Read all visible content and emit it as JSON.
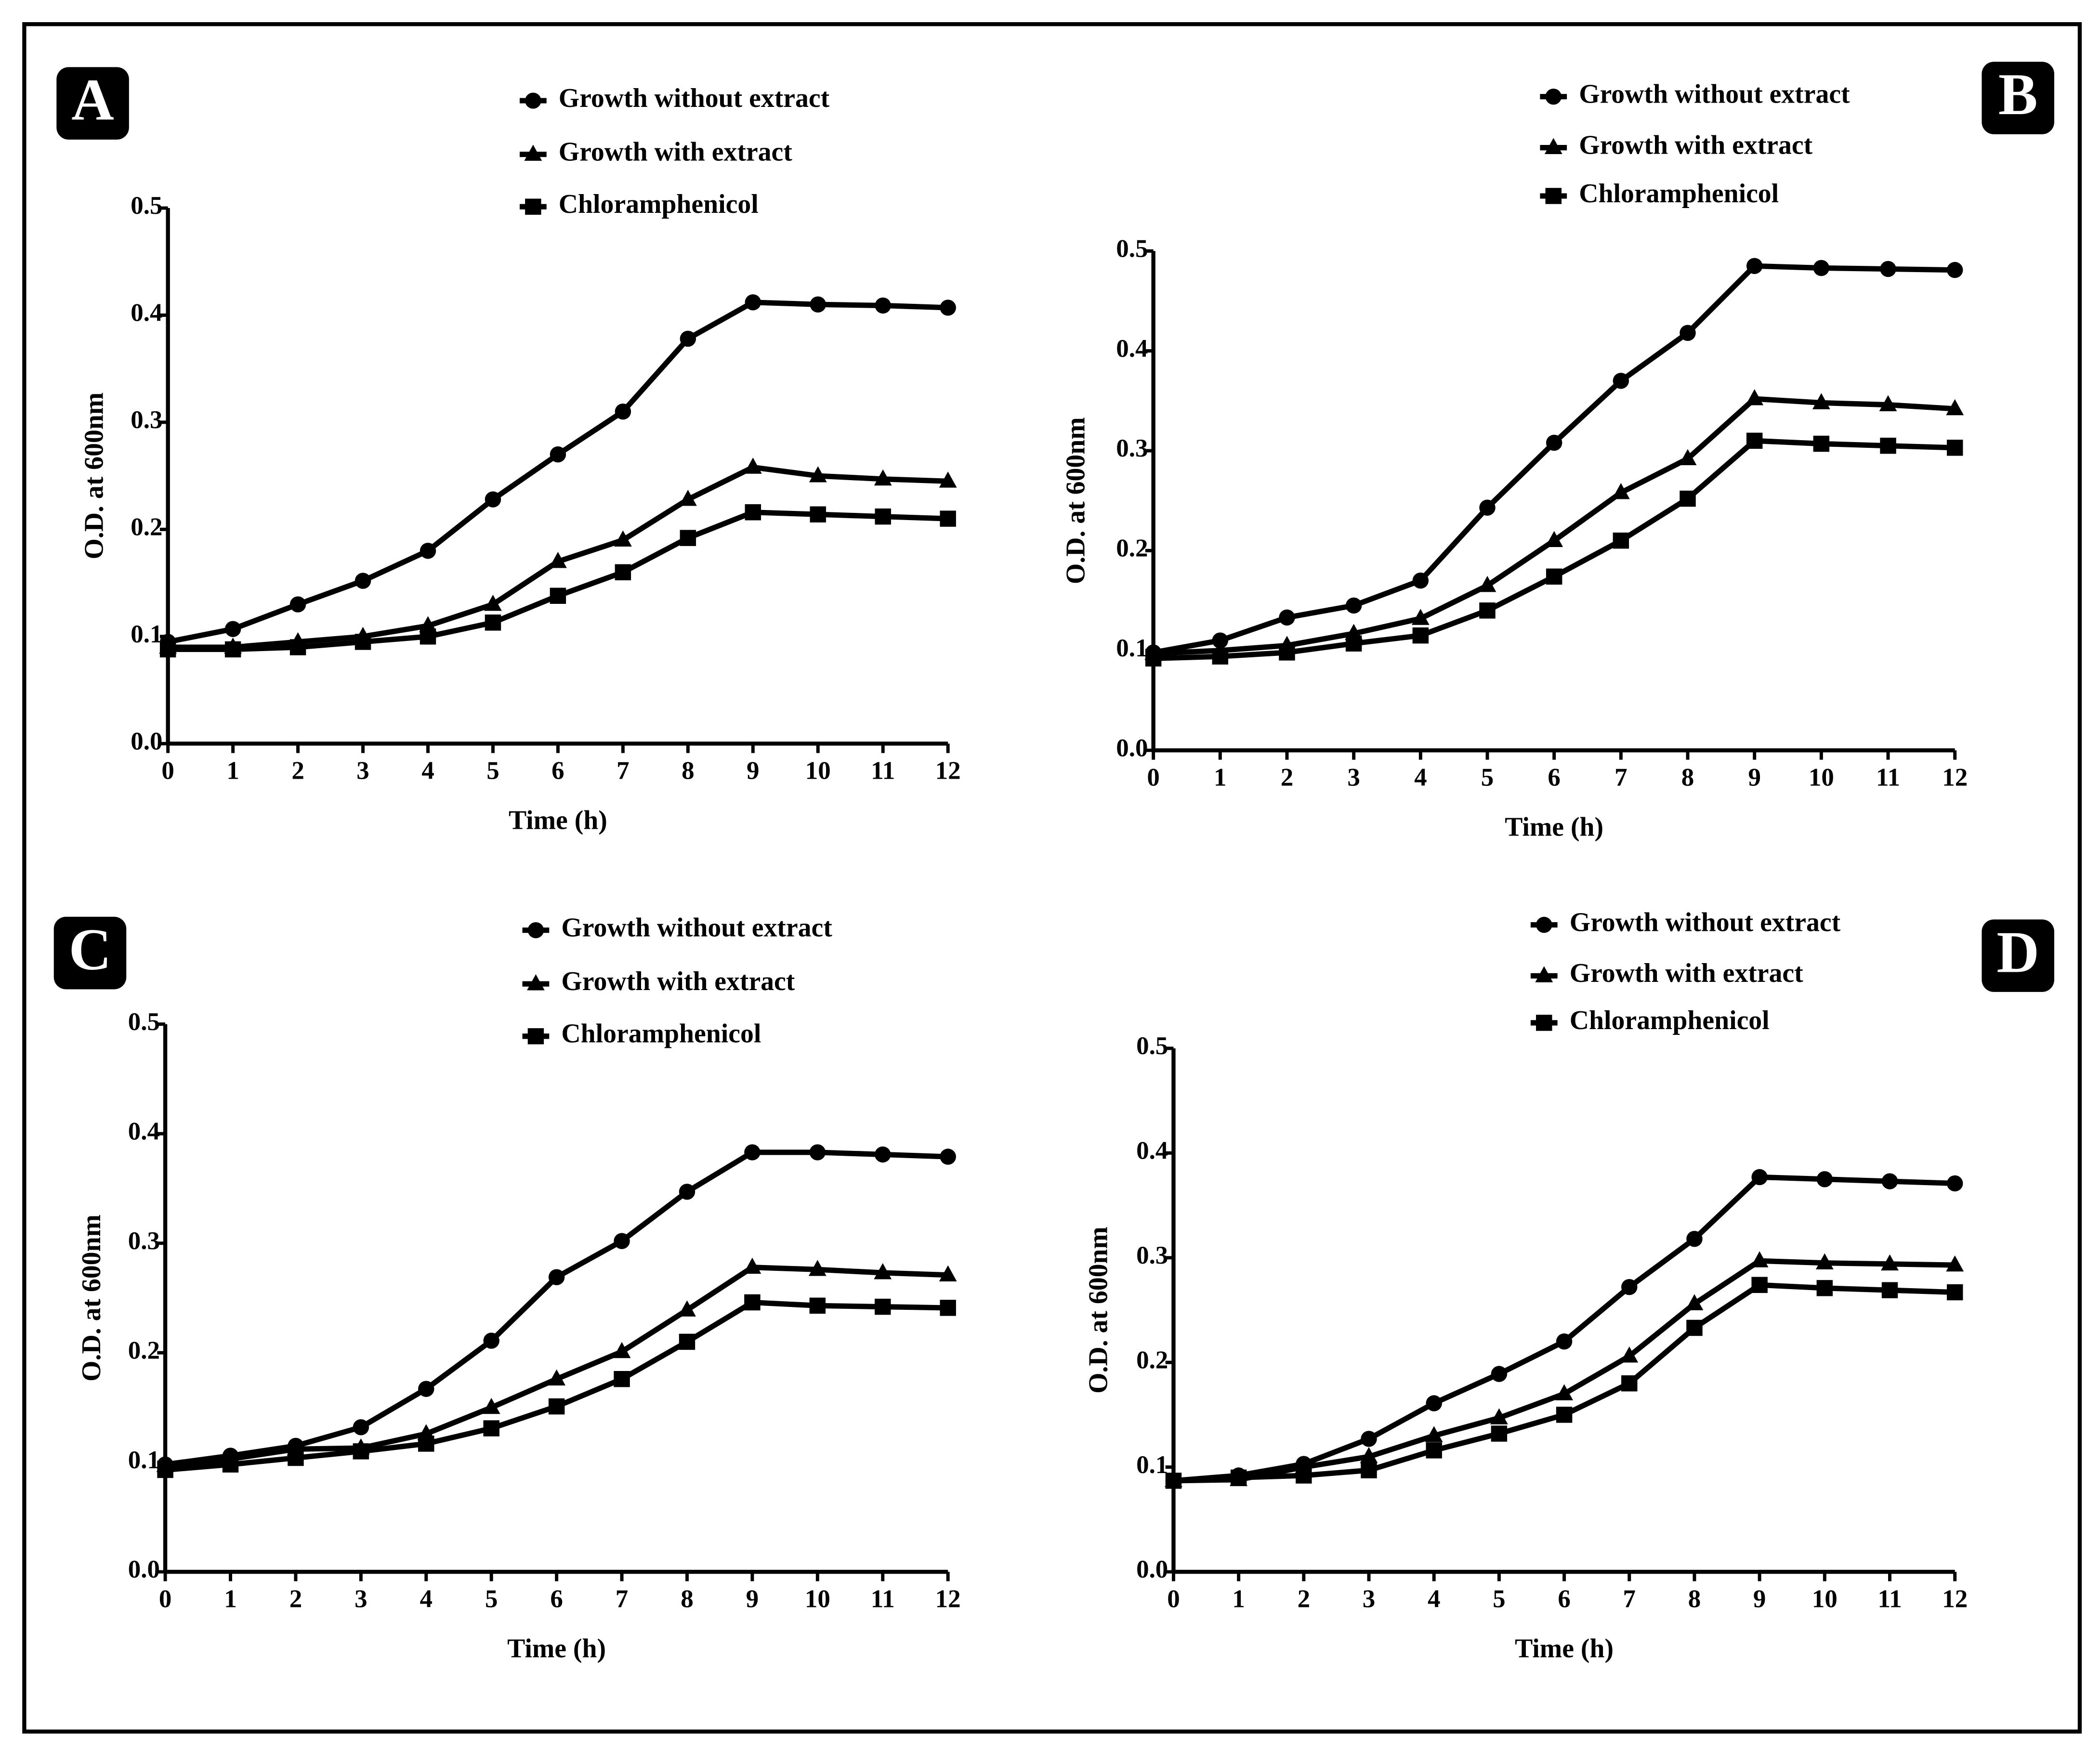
{
  "chart_data": [
    {
      "type": "line",
      "label": "A",
      "xlabel": "Time (h)",
      "ylabel": "O.D. at 600nm",
      "x": [
        0,
        1,
        2,
        3,
        4,
        5,
        6,
        7,
        8,
        9,
        10,
        11,
        12
      ],
      "xlim": [
        0,
        12
      ],
      "xticks": [
        0,
        1,
        2,
        3,
        4,
        5,
        6,
        7,
        8,
        9,
        10,
        11,
        12
      ],
      "ylim": [
        0,
        0.5
      ],
      "yticks": [
        {
          "value": 0,
          "label": "0.0"
        },
        0.1,
        0.2,
        0.3,
        0.4,
        0.5
      ],
      "series": [
        {
          "name": "Growth without extract",
          "color": "#000000",
          "marker": "circle",
          "values": [
            0.095,
            0.107,
            0.13,
            0.152,
            0.18,
            0.228,
            0.27,
            0.31,
            0.378,
            0.412,
            0.41,
            0.409,
            0.407
          ]
        },
        {
          "name": "Growth with extract",
          "color": "#000000",
          "marker": "triangle",
          "values": [
            0.09,
            0.09,
            0.095,
            0.1,
            0.11,
            0.13,
            0.17,
            0.19,
            0.228,
            0.258,
            0.25,
            0.247,
            0.245
          ]
        },
        {
          "name": "Chloramphenicol",
          "color": "#000000",
          "marker": "square",
          "values": [
            0.088,
            0.088,
            0.09,
            0.095,
            0.1,
            0.113,
            0.138,
            0.16,
            0.192,
            0.216,
            0.214,
            0.212,
            0.21
          ]
        }
      ]
    },
    {
      "type": "line",
      "label": "B",
      "xlabel": "Time (h)",
      "ylabel": "O.D. at 600nm",
      "x": [
        0,
        1,
        2,
        3,
        4,
        5,
        6,
        7,
        8,
        9,
        10,
        11,
        12
      ],
      "xlim": [
        0,
        12
      ],
      "xticks": [
        0,
        1,
        2,
        3,
        4,
        5,
        6,
        7,
        8,
        9,
        10,
        11,
        12
      ],
      "ylim": [
        0,
        0.5
      ],
      "yticks": [
        {
          "value": 0,
          "label": "0.0"
        },
        0.1,
        0.2,
        0.3,
        0.4,
        0.5
      ],
      "series": [
        {
          "name": "Growth without extract",
          "color": "#000000",
          "marker": "circle",
          "values": [
            0.098,
            0.11,
            0.133,
            0.145,
            0.17,
            0.243,
            0.308,
            0.37,
            0.418,
            0.485,
            0.483,
            0.482,
            0.481
          ]
        },
        {
          "name": "Growth with extract",
          "color": "#000000",
          "marker": "triangle",
          "values": [
            0.097,
            0.1,
            0.105,
            0.117,
            0.132,
            0.165,
            0.21,
            0.258,
            0.292,
            0.352,
            0.348,
            0.346,
            0.342
          ]
        },
        {
          "name": "Chloramphenicol",
          "color": "#000000",
          "marker": "square",
          "values": [
            0.092,
            0.094,
            0.098,
            0.107,
            0.115,
            0.14,
            0.174,
            0.21,
            0.252,
            0.31,
            0.307,
            0.305,
            0.303
          ]
        }
      ]
    },
    {
      "type": "line",
      "label": "C",
      "xlabel": "Time (h)",
      "ylabel": "O.D. at 600nm",
      "x": [
        0,
        1,
        2,
        3,
        4,
        5,
        6,
        7,
        8,
        9,
        10,
        11,
        12
      ],
      "xlim": [
        0,
        12
      ],
      "xticks": [
        0,
        1,
        2,
        3,
        4,
        5,
        6,
        7,
        8,
        9,
        10,
        11,
        12
      ],
      "ylim": [
        0,
        0.5
      ],
      "yticks": [
        {
          "value": 0,
          "label": "0.0"
        },
        0.1,
        0.2,
        0.3,
        0.4,
        0.5
      ],
      "series": [
        {
          "name": "Growth without extract",
          "color": "#000000",
          "marker": "circle",
          "values": [
            0.098,
            0.106,
            0.115,
            0.132,
            0.167,
            0.211,
            0.269,
            0.302,
            0.347,
            0.383,
            0.383,
            0.381,
            0.379
          ]
        },
        {
          "name": "Growth with extract",
          "color": "#000000",
          "marker": "triangle",
          "values": [
            0.097,
            0.103,
            0.112,
            0.113,
            0.126,
            0.15,
            0.176,
            0.201,
            0.239,
            0.278,
            0.276,
            0.273,
            0.271
          ]
        },
        {
          "name": "Chloramphenicol",
          "color": "#000000",
          "marker": "square",
          "values": [
            0.093,
            0.098,
            0.104,
            0.11,
            0.117,
            0.131,
            0.151,
            0.176,
            0.21,
            0.246,
            0.243,
            0.242,
            0.241
          ]
        }
      ]
    },
    {
      "type": "line",
      "label": "D",
      "xlabel": "Time (h)",
      "ylabel": "O.D. at 600nm",
      "x": [
        0,
        1,
        2,
        3,
        4,
        5,
        6,
        7,
        8,
        9,
        10,
        11,
        12
      ],
      "xlim": [
        0,
        12
      ],
      "xticks": [
        0,
        1,
        2,
        3,
        4,
        5,
        6,
        7,
        8,
        9,
        10,
        11,
        12
      ],
      "ylim": [
        0,
        0.5
      ],
      "yticks": [
        {
          "value": 0,
          "label": "0.0"
        },
        0.1,
        0.2,
        0.3,
        0.4,
        0.5
      ],
      "series": [
        {
          "name": "Growth without extract",
          "color": "#000000",
          "marker": "circle",
          "values": [
            0.087,
            0.092,
            0.103,
            0.127,
            0.161,
            0.189,
            0.22,
            0.272,
            0.318,
            0.377,
            0.375,
            0.373,
            0.371
          ]
        },
        {
          "name": "Growth with extract",
          "color": "#000000",
          "marker": "triangle",
          "values": [
            0.087,
            0.088,
            0.1,
            0.11,
            0.13,
            0.147,
            0.17,
            0.206,
            0.256,
            0.297,
            0.295,
            0.294,
            0.293
          ]
        },
        {
          "name": "Chloramphenicol",
          "color": "#000000",
          "marker": "square",
          "values": [
            0.087,
            0.09,
            0.092,
            0.097,
            0.116,
            0.132,
            0.15,
            0.18,
            0.233,
            0.274,
            0.271,
            0.269,
            0.267
          ]
        }
      ]
    }
  ]
}
